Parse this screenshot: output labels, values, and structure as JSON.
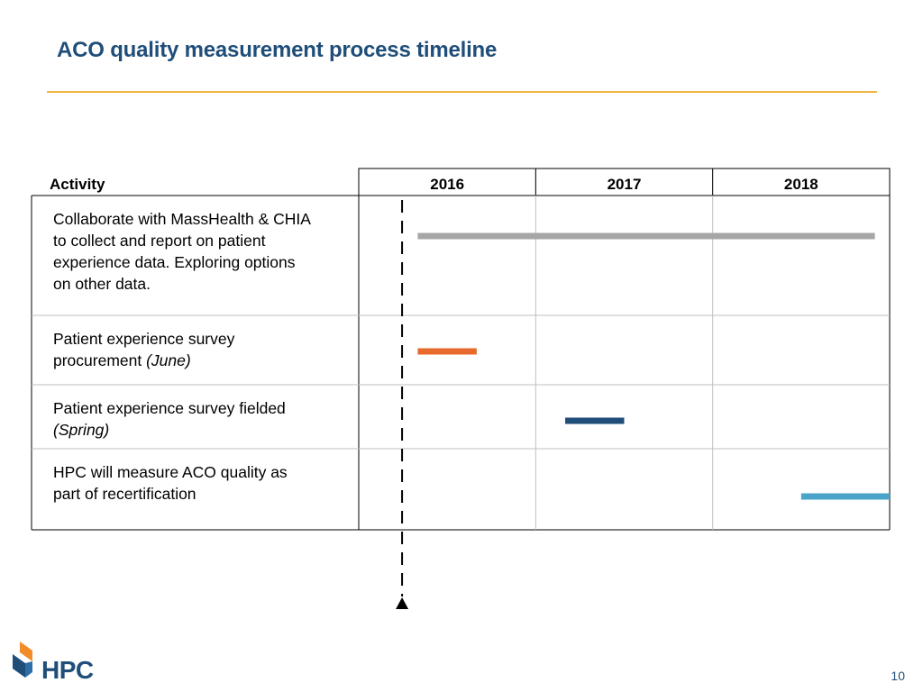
{
  "slide": {
    "title": "ACO quality measurement process timeline",
    "page_number": "10",
    "logo_text": "HPC",
    "accent_color": "#f2b441",
    "title_color": "#1f4e79"
  },
  "chart_data": {
    "type": "gantt",
    "activity_header": "Activity",
    "years": [
      "2016",
      "2017",
      "2018"
    ],
    "x_range": [
      "2016-01",
      "2019-01"
    ],
    "current_marker": "2016-04",
    "grid": true,
    "activities": [
      {
        "lines": [
          "Collaborate with MassHealth & CHIA",
          "to collect and report on patient",
          "experience data. Exploring options",
          "on other data."
        ],
        "note": "",
        "start": "2016-05",
        "end": "2018-12",
        "color": "#a6a6a6"
      },
      {
        "lines": [
          "Patient experience survey",
          "procurement "
        ],
        "note": "(June)",
        "start": "2016-05",
        "end": "2016-09",
        "color": "#e8692c"
      },
      {
        "lines": [
          "Patient experience survey fielded"
        ],
        "note": "(Spring)",
        "start": "2017-03",
        "end": "2017-07",
        "color": "#1f4e79"
      },
      {
        "lines": [
          "HPC will measure ACO quality as",
          "part of recertification"
        ],
        "note": "",
        "start": "2018-07",
        "end": "2019-01",
        "color": "#4aa3c8"
      }
    ]
  }
}
